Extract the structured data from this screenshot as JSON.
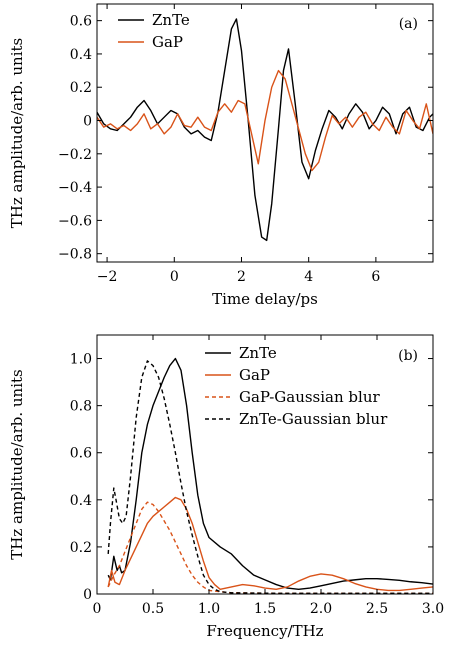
{
  "chart_data": [
    {
      "type": "line",
      "panel_label": "(a)",
      "xlabel": "Time delay/ps",
      "ylabel": "THz amplitude/arb. units",
      "xlim": [
        -2.3,
        7.7
      ],
      "ylim": [
        -0.85,
        0.7
      ],
      "xticks": [
        -2,
        0,
        2,
        4,
        6
      ],
      "xtick_labels": [
        "−2",
        "0",
        "2",
        "4",
        "6"
      ],
      "yticks": [
        -0.8,
        -0.6,
        -0.4,
        -0.2,
        0,
        0.2,
        0.4,
        0.6
      ],
      "ytick_labels": [
        "−0.8",
        "−0.6",
        "−0.4",
        "−0.2",
        "0",
        "0.2",
        "0.4",
        "0.6"
      ],
      "legend_position": "top-left",
      "series": [
        {
          "name": "ZnTe",
          "color": "#000000",
          "dash": "solid",
          "x": [
            -2.3,
            -2.1,
            -1.9,
            -1.7,
            -1.5,
            -1.3,
            -1.1,
            -0.9,
            -0.7,
            -0.5,
            -0.3,
            -0.1,
            0.1,
            0.3,
            0.5,
            0.7,
            0.9,
            1.1,
            1.3,
            1.5,
            1.7,
            1.85,
            2.0,
            2.2,
            2.4,
            2.6,
            2.75,
            2.9,
            3.1,
            3.25,
            3.4,
            3.6,
            3.8,
            4.0,
            4.2,
            4.4,
            4.6,
            4.8,
            5.0,
            5.2,
            5.4,
            5.6,
            5.8,
            6.0,
            6.2,
            6.4,
            6.6,
            6.8,
            7.0,
            7.2,
            7.4,
            7.6,
            7.7
          ],
          "y": [
            0.05,
            -0.02,
            -0.05,
            -0.06,
            -0.02,
            0.02,
            0.08,
            0.12,
            0.06,
            -0.02,
            0.02,
            0.06,
            0.04,
            -0.04,
            -0.08,
            -0.06,
            -0.1,
            -0.12,
            0.05,
            0.3,
            0.55,
            0.61,
            0.42,
            0.0,
            -0.45,
            -0.7,
            -0.72,
            -0.5,
            -0.05,
            0.3,
            0.43,
            0.1,
            -0.25,
            -0.35,
            -0.18,
            -0.05,
            0.06,
            0.02,
            -0.05,
            0.04,
            0.1,
            0.05,
            -0.05,
            0.0,
            0.08,
            0.04,
            -0.08,
            0.04,
            0.08,
            -0.04,
            -0.06,
            0.02,
            0.04
          ]
        },
        {
          "name": "GaP",
          "color": "#d95319",
          "dash": "solid",
          "x": [
            -2.3,
            -2.1,
            -1.9,
            -1.7,
            -1.5,
            -1.3,
            -1.1,
            -0.9,
            -0.7,
            -0.5,
            -0.3,
            -0.1,
            0.1,
            0.3,
            0.5,
            0.7,
            0.9,
            1.1,
            1.3,
            1.5,
            1.7,
            1.9,
            2.1,
            2.3,
            2.5,
            2.7,
            2.9,
            3.1,
            3.3,
            3.5,
            3.7,
            3.9,
            4.1,
            4.3,
            4.5,
            4.7,
            4.9,
            5.1,
            5.3,
            5.5,
            5.7,
            5.9,
            6.1,
            6.3,
            6.5,
            6.7,
            6.9,
            7.1,
            7.3,
            7.5,
            7.7
          ],
          "y": [
            0.02,
            -0.04,
            -0.02,
            -0.05,
            -0.03,
            -0.06,
            -0.02,
            0.04,
            -0.05,
            -0.02,
            -0.08,
            -0.04,
            0.04,
            -0.03,
            -0.04,
            0.02,
            -0.04,
            -0.06,
            0.05,
            0.1,
            0.05,
            0.12,
            0.1,
            -0.08,
            -0.26,
            0.0,
            0.2,
            0.3,
            0.25,
            0.1,
            -0.05,
            -0.2,
            -0.3,
            -0.25,
            -0.1,
            0.03,
            -0.02,
            0.02,
            -0.04,
            0.02,
            0.05,
            -0.02,
            -0.06,
            0.02,
            -0.04,
            -0.08,
            0.06,
            0.0,
            -0.05,
            0.1,
            -0.08
          ]
        }
      ]
    },
    {
      "type": "line",
      "panel_label": "(b)",
      "xlabel": "Frequency/THz",
      "ylabel": "THz amplitude/arb. units",
      "xlim": [
        0,
        3.0
      ],
      "ylim": [
        0,
        1.1
      ],
      "xticks": [
        0,
        0.5,
        1.0,
        1.5,
        2.0,
        2.5,
        3.0
      ],
      "xtick_labels": [
        "0",
        "0.5",
        "1.0",
        "1.5",
        "2.0",
        "2.5",
        "3.0"
      ],
      "yticks": [
        0,
        0.2,
        0.4,
        0.6,
        0.8,
        1.0
      ],
      "ytick_labels": [
        "0",
        "0.2",
        "0.4",
        "0.6",
        "0.8",
        "1.0"
      ],
      "legend_position": "top-right",
      "series": [
        {
          "name": "ZnTe",
          "color": "#000000",
          "dash": "solid",
          "x": [
            0.1,
            0.12,
            0.15,
            0.18,
            0.2,
            0.22,
            0.25,
            0.3,
            0.35,
            0.4,
            0.45,
            0.5,
            0.55,
            0.6,
            0.65,
            0.7,
            0.75,
            0.8,
            0.85,
            0.9,
            0.95,
            1.0,
            1.1,
            1.2,
            1.3,
            1.4,
            1.5,
            1.6,
            1.7,
            1.8,
            1.9,
            2.0,
            2.1,
            2.2,
            2.3,
            2.4,
            2.5,
            2.6,
            2.7,
            2.8,
            2.9,
            3.0
          ],
          "y": [
            0.08,
            0.06,
            0.16,
            0.1,
            0.12,
            0.09,
            0.1,
            0.22,
            0.4,
            0.6,
            0.72,
            0.8,
            0.86,
            0.92,
            0.97,
            1.0,
            0.95,
            0.8,
            0.6,
            0.42,
            0.3,
            0.24,
            0.2,
            0.17,
            0.12,
            0.08,
            0.06,
            0.04,
            0.025,
            0.02,
            0.025,
            0.035,
            0.045,
            0.055,
            0.06,
            0.065,
            0.065,
            0.062,
            0.058,
            0.052,
            0.048,
            0.042
          ]
        },
        {
          "name": "GaP",
          "color": "#d95319",
          "dash": "solid",
          "x": [
            0.1,
            0.13,
            0.16,
            0.2,
            0.25,
            0.3,
            0.35,
            0.4,
            0.45,
            0.5,
            0.55,
            0.6,
            0.65,
            0.7,
            0.75,
            0.8,
            0.85,
            0.9,
            0.95,
            1.0,
            1.05,
            1.1,
            1.2,
            1.3,
            1.4,
            1.5,
            1.6,
            1.7,
            1.8,
            1.9,
            2.0,
            2.1,
            2.2,
            2.3,
            2.4,
            2.5,
            2.6,
            2.7,
            2.8,
            2.9,
            3.0
          ],
          "y": [
            0.03,
            0.1,
            0.05,
            0.04,
            0.1,
            0.15,
            0.2,
            0.25,
            0.3,
            0.33,
            0.35,
            0.37,
            0.39,
            0.41,
            0.4,
            0.36,
            0.3,
            0.22,
            0.14,
            0.07,
            0.04,
            0.02,
            0.03,
            0.04,
            0.035,
            0.025,
            0.02,
            0.03,
            0.055,
            0.075,
            0.085,
            0.08,
            0.065,
            0.045,
            0.03,
            0.02,
            0.015,
            0.015,
            0.02,
            0.025,
            0.03
          ]
        },
        {
          "name": "GaP-Gaussian blur",
          "color": "#d95319",
          "dash": "dashed",
          "x": [
            0.1,
            0.15,
            0.2,
            0.25,
            0.3,
            0.35,
            0.4,
            0.45,
            0.5,
            0.55,
            0.6,
            0.65,
            0.7,
            0.75,
            0.8,
            0.85,
            0.9,
            0.95,
            1.0,
            1.1,
            1.2,
            1.4,
            1.6,
            1.8,
            2.0,
            2.2,
            2.4,
            2.6,
            2.8,
            3.0
          ],
          "y": [
            0.03,
            0.08,
            0.12,
            0.18,
            0.24,
            0.3,
            0.36,
            0.39,
            0.38,
            0.35,
            0.31,
            0.27,
            0.22,
            0.17,
            0.12,
            0.08,
            0.05,
            0.03,
            0.015,
            0.01,
            0.005,
            0.004,
            0.003,
            0.003,
            0.003,
            0.003,
            0.003,
            0.003,
            0.003,
            0.003
          ]
        },
        {
          "name": "ZnTe-Gaussian blur",
          "color": "#000000",
          "dash": "dashed",
          "x": [
            0.1,
            0.12,
            0.15,
            0.17,
            0.2,
            0.23,
            0.26,
            0.3,
            0.35,
            0.4,
            0.45,
            0.5,
            0.55,
            0.6,
            0.65,
            0.7,
            0.75,
            0.8,
            0.85,
            0.9,
            0.95,
            1.0,
            1.05,
            1.1,
            1.2,
            1.4,
            1.6,
            1.8,
            2.0,
            2.2,
            2.4,
            2.6,
            2.8,
            3.0
          ],
          "y": [
            0.17,
            0.3,
            0.45,
            0.4,
            0.32,
            0.3,
            0.33,
            0.5,
            0.75,
            0.92,
            0.99,
            0.97,
            0.92,
            0.83,
            0.72,
            0.6,
            0.47,
            0.35,
            0.25,
            0.16,
            0.08,
            0.04,
            0.02,
            0.01,
            0.005,
            0.004,
            0.003,
            0.003,
            0.003,
            0.003,
            0.003,
            0.003,
            0.003,
            0.003
          ]
        }
      ]
    }
  ]
}
